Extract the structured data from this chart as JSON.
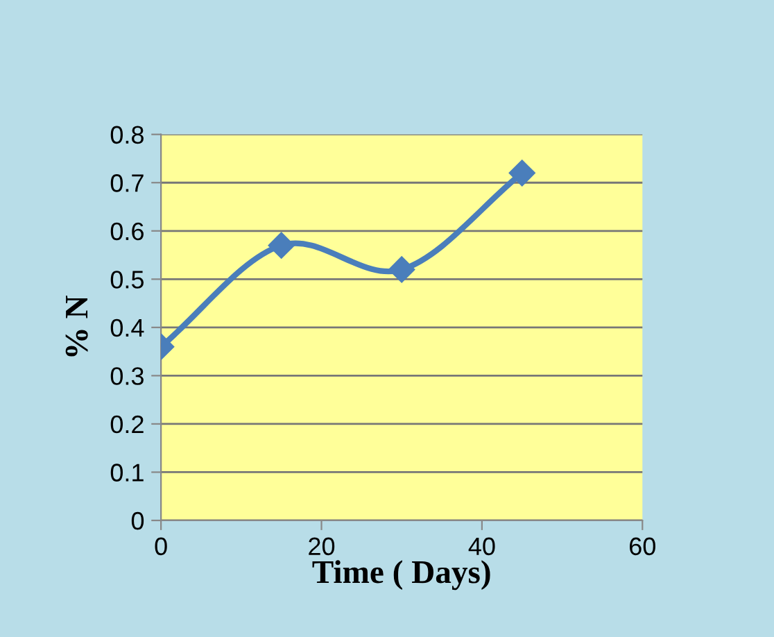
{
  "chart_data": {
    "type": "line",
    "x": [
      0,
      15,
      30,
      45
    ],
    "series": [
      {
        "color": "#4a7ebb",
        "values": [
          0.36,
          0.57,
          0.52,
          0.72
        ]
      }
    ],
    "xlabel": "Time ( Days)",
    "ylabel": "% N",
    "xlim": [
      0,
      60
    ],
    "xticks": [
      0,
      20,
      40,
      60
    ],
    "ylim": [
      0,
      0.8
    ],
    "yticks": [
      0,
      0.1,
      0.2,
      0.3,
      0.4,
      0.5,
      0.6,
      0.7,
      0.8
    ],
    "grid": "y",
    "marker": "diamond",
    "line_style": "solid",
    "legend": false
  }
}
